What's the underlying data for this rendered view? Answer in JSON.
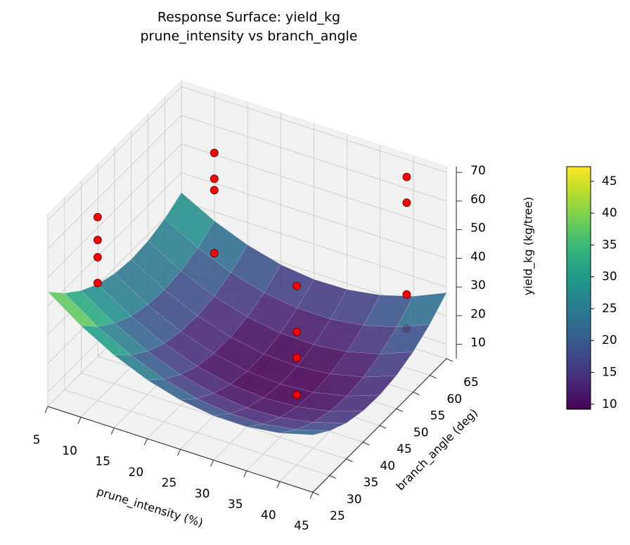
{
  "chart_data": {
    "type": "surface3d",
    "title": "Response Surface: yield_kg",
    "subtitle": "prune_intensity vs branch_angle",
    "x_label": "prune_intensity (%)",
    "y_label": "branch_angle (deg)",
    "z_label": "yield_kg (kg/tree)",
    "x": [
      5,
      10,
      15,
      20,
      25,
      30,
      35,
      40,
      45
    ],
    "y": [
      25,
      30,
      35,
      40,
      45,
      50,
      55,
      60,
      65
    ],
    "z": [
      [
        45.0,
        38.7,
        33.8,
        30.2,
        28.1,
        27.2,
        27.8,
        29.7,
        33.0
      ],
      [
        36.9,
        30.8,
        26.2,
        22.8,
        20.9,
        20.3,
        21.1,
        23.3,
        26.8
      ],
      [
        30.4,
        24.6,
        20.1,
        17.0,
        15.3,
        15.0,
        16.0,
        18.4,
        22.2
      ],
      [
        25.5,
        19.9,
        15.7,
        12.8,
        11.4,
        11.3,
        12.5,
        15.1,
        19.1
      ],
      [
        22.2,
        16.9,
        12.9,
        10.2,
        9.0,
        9.1,
        10.6,
        13.5,
        17.7
      ],
      [
        20.5,
        15.4,
        11.6,
        9.3,
        8.2,
        8.6,
        10.3,
        13.4,
        17.9
      ],
      [
        20.4,
        15.5,
        12.0,
        9.9,
        9.1,
        9.7,
        11.6,
        15.0,
        19.7
      ],
      [
        21.9,
        17.3,
        14.0,
        12.1,
        11.5,
        12.3,
        14.5,
        18.1,
        23.0
      ],
      [
        25.0,
        20.6,
        17.5,
        15.9,
        15.6,
        16.6,
        19.0,
        22.8,
        28.0
      ]
    ],
    "colormap": "viridis",
    "clim": [
      9.2,
      47.3
    ],
    "cticks": [
      10,
      15,
      20,
      25,
      30,
      35,
      40,
      45
    ],
    "xlim": [
      5,
      45
    ],
    "ylim": [
      25,
      65
    ],
    "zlim": [
      5,
      72
    ],
    "xticks": [
      5,
      10,
      15,
      20,
      25,
      30,
      35,
      40,
      45
    ],
    "yticks": [
      25,
      30,
      35,
      40,
      45,
      50,
      55,
      60,
      65
    ],
    "zticks": [
      10,
      20,
      30,
      40,
      50,
      60,
      70
    ],
    "grid": true,
    "points": {
      "color": "#ff0000",
      "x": [
        10,
        10,
        10,
        10,
        15,
        15,
        15,
        15,
        35,
        35,
        35,
        35,
        40,
        40,
        40,
        40
      ],
      "y": [
        30,
        30,
        30,
        30,
        55,
        55,
        55,
        55,
        40,
        40,
        40,
        40,
        63,
        63,
        63,
        63
      ],
      "z": [
        69,
        61,
        55,
        46,
        66,
        57,
        53,
        31,
        52,
        36,
        27,
        14,
        67,
        58,
        26,
        14
      ]
    }
  }
}
